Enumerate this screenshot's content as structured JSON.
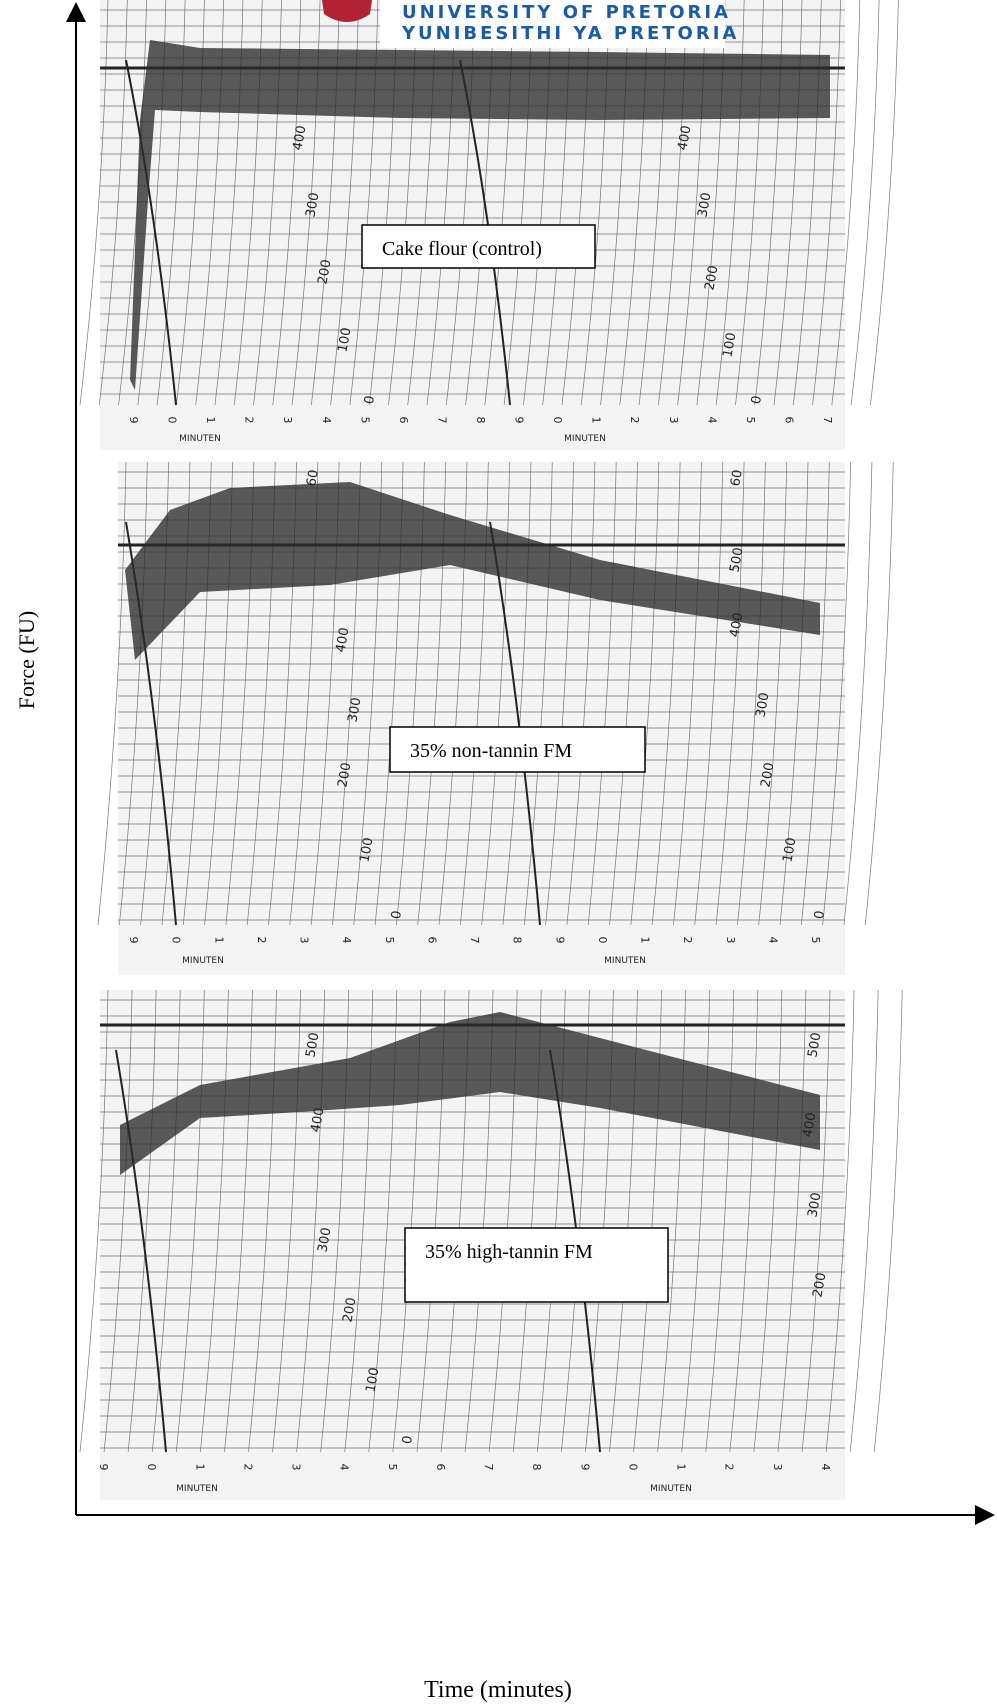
{
  "header": {
    "line1": "UNIVERSITY OF PRETORIA",
    "line2": "YUNIBESITHI YA PRETORIA"
  },
  "axes": {
    "y_label": "Force (FU)",
    "x_label": "Time (minutes)"
  },
  "panels": [
    {
      "label": "Cake flour (control)",
      "minute_labels": [
        "9",
        "0",
        "1",
        "2",
        "3",
        "4",
        "5",
        "6",
        "7",
        "8",
        "9",
        "0",
        "1",
        "2",
        "3",
        "4",
        "5",
        "6",
        "7"
      ],
      "unit_labels": [
        "MINUTEN",
        "MINUTEN"
      ],
      "force_labels": [
        "400",
        "300",
        "200",
        "100",
        "0",
        "400",
        "300",
        "200",
        "100",
        "0"
      ]
    },
    {
      "label": "35% non-tannin FM",
      "minute_labels": [
        "9",
        "0",
        "1",
        "2",
        "3",
        "4",
        "5",
        "6",
        "7",
        "8",
        "9",
        "0",
        "1",
        "2",
        "3",
        "4",
        "5"
      ],
      "unit_labels": [
        "MINUTEN",
        "MINUTEN"
      ],
      "force_labels": [
        "60",
        "400",
        "300",
        "200",
        "100",
        "0",
        "60",
        "500",
        "400",
        "300",
        "200",
        "100",
        "0"
      ]
    },
    {
      "label": "35% high-tannin FM",
      "minute_labels": [
        "9",
        "0",
        "1",
        "2",
        "3",
        "4",
        "5",
        "6",
        "7",
        "8",
        "9",
        "0",
        "1",
        "2",
        "3",
        "4"
      ],
      "unit_labels": [
        "MINUTEN",
        "MINUTEN"
      ],
      "force_labels": [
        "500",
        "400",
        "300",
        "200",
        "100",
        "0",
        "500",
        "400",
        "300",
        "200"
      ]
    }
  ]
}
